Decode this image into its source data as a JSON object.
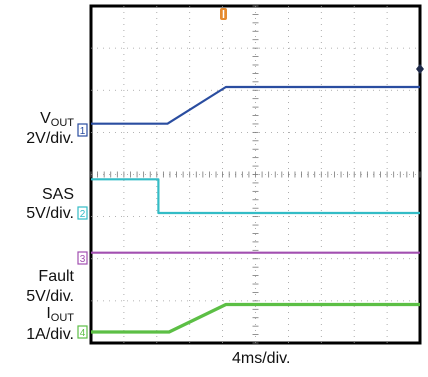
{
  "chart_data": {
    "type": "line",
    "xlabel": "4ms/div.",
    "x_range_ms": [
      0,
      40
    ],
    "grid": true,
    "channels": [
      {
        "id": "1",
        "label_main": "V",
        "label_sub": "OUT",
        "scale": "2V/div.",
        "color": "#2a4da0",
        "x": [
          0,
          9.3,
          16.4,
          40
        ],
        "y": [
          1.5,
          1.5,
          10.2,
          10.2
        ]
      },
      {
        "id": "2",
        "label_main": "SAS",
        "label_sub": "",
        "scale": "5V/div.",
        "color": "#33bcc6",
        "x": [
          0,
          8.2,
          8.2,
          40
        ],
        "y": [
          1.6,
          1.6,
          0,
          0
        ]
      },
      {
        "id": "3",
        "label_main": "Fault",
        "label_sub": "",
        "scale": "5V/div.",
        "color": "#a24fb0",
        "x": [
          0,
          40
        ],
        "y": [
          0.25,
          0.25
        ]
      },
      {
        "id": "4",
        "label_main": "I",
        "label_sub": "OUT",
        "scale": "1A/div.",
        "color": "#5cbf45",
        "x": [
          0,
          9.5,
          16.4,
          40
        ],
        "y": [
          0,
          0,
          1.9,
          1.9
        ]
      }
    ]
  }
}
